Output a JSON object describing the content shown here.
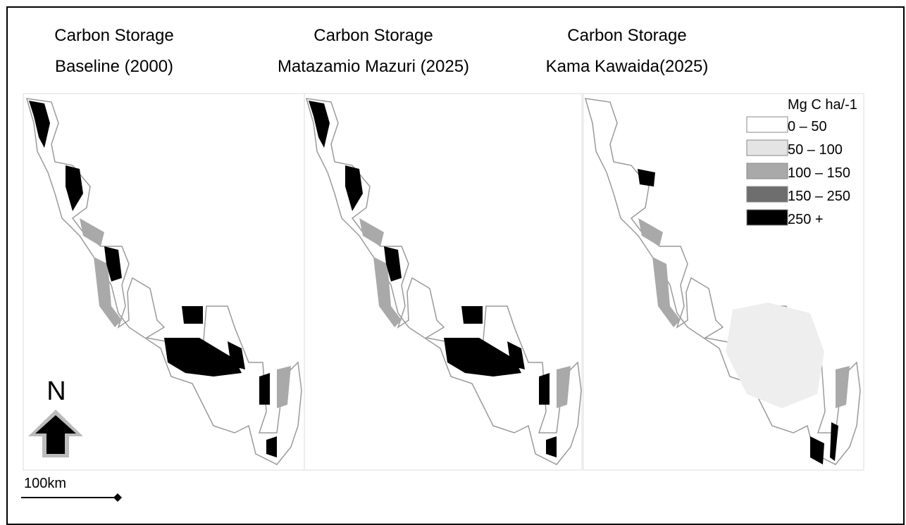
{
  "panels": [
    {
      "title": [
        "Carbon Storage",
        "Baseline (2000)"
      ]
    },
    {
      "title": [
        "Carbon Storage",
        "Matazamio Mazuri (2025)"
      ]
    },
    {
      "title": [
        "Carbon Storage",
        "Kama Kawaida(2025)"
      ]
    }
  ],
  "legend": {
    "title": "Mg C ha/-1",
    "items": [
      {
        "label": "0 – 50",
        "color": "#ffffff"
      },
      {
        "label": "50 – 100",
        "color": "#e4e4e4"
      },
      {
        "label": "100 – 150",
        "color": "#a9a9a9"
      },
      {
        "label": "150 – 250",
        "color": "#6e6e6e"
      },
      {
        "label": "250 +",
        "color": "#000000"
      }
    ]
  },
  "north_label": "N",
  "scale_label": "100km"
}
